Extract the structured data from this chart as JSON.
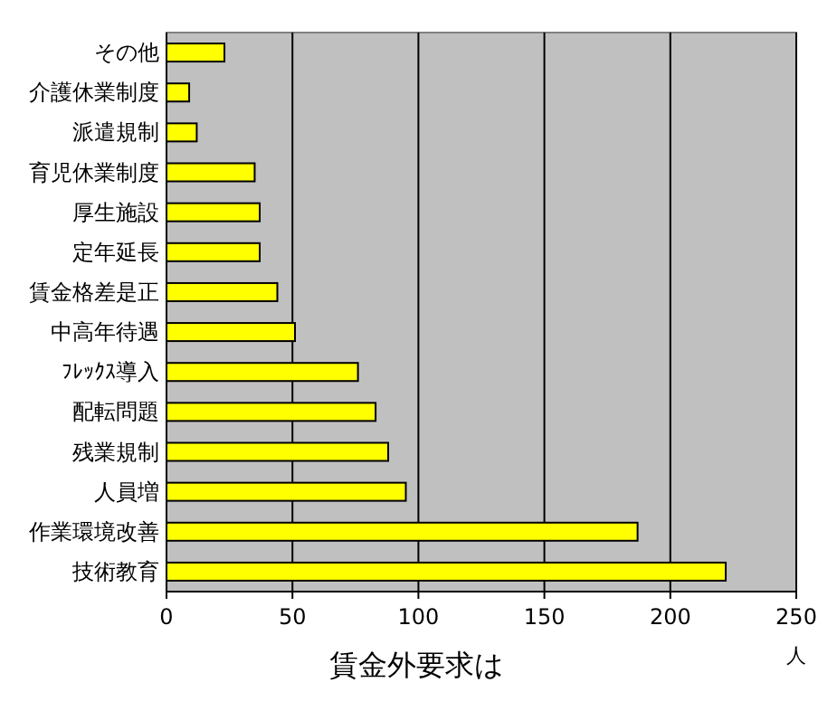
{
  "chart_data": {
    "type": "bar",
    "orientation": "horizontal",
    "title": "賃金外要求は",
    "xlabel": "人",
    "categories": [
      "その他",
      "介護休業制度",
      "派遣規制",
      "育児休業制度",
      "厚生施設",
      "定年延長",
      "賃金格差是正",
      "中高年待遇",
      "ﾌﾚｯｸｽ導入",
      "配転問題",
      "残業規制",
      "人員増",
      "作業環境改善",
      "技術教育"
    ],
    "values": [
      23,
      9,
      12,
      35,
      37,
      37,
      44,
      51,
      76,
      83,
      88,
      95,
      187,
      222
    ],
    "color": "#ffff00",
    "xlim": [
      0,
      250
    ],
    "xticks": [
      0,
      50,
      100,
      150,
      200,
      250
    ],
    "grid": "x"
  }
}
